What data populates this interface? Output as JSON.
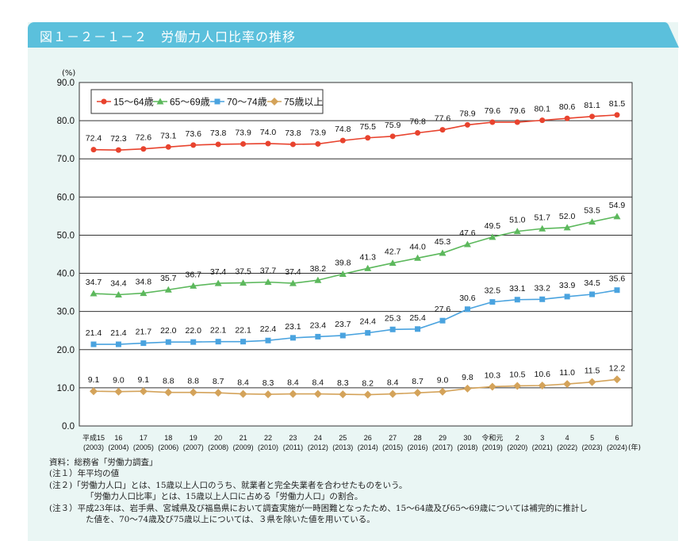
{
  "title": "図１－２－１－２　労働力人口比率の推移",
  "chart_data": {
    "type": "line",
    "title": "図１－２－１－２　労働力人口比率の推移",
    "ylabel": "(%)",
    "xunit": "(年)",
    "ylim": [
      0,
      90
    ],
    "yticks": [
      "0.0",
      "10.0",
      "20.0",
      "30.0",
      "40.0",
      "50.0",
      "60.0",
      "70.0",
      "80.0",
      "90.0"
    ],
    "grid": true,
    "legend_position": "top-left",
    "categories": [
      {
        "era": "平成15",
        "year": "(2003)"
      },
      {
        "era": "16",
        "year": "(2004)"
      },
      {
        "era": "17",
        "year": "(2005)"
      },
      {
        "era": "18",
        "year": "(2006)"
      },
      {
        "era": "19",
        "year": "(2007)"
      },
      {
        "era": "20",
        "year": "(2008)"
      },
      {
        "era": "21",
        "year": "(2009)"
      },
      {
        "era": "22",
        "year": "(2010)"
      },
      {
        "era": "23",
        "year": "(2011)"
      },
      {
        "era": "24",
        "year": "(2012)"
      },
      {
        "era": "25",
        "year": "(2013)"
      },
      {
        "era": "26",
        "year": "(2014)"
      },
      {
        "era": "27",
        "year": "(2015)"
      },
      {
        "era": "28",
        "year": "(2016)"
      },
      {
        "era": "29",
        "year": "(2017)"
      },
      {
        "era": "30",
        "year": "(2018)"
      },
      {
        "era": "令和元",
        "year": "(2019)"
      },
      {
        "era": "2",
        "year": "(2020)"
      },
      {
        "era": "3",
        "year": "(2021)"
      },
      {
        "era": "4",
        "year": "(2022)"
      },
      {
        "era": "5",
        "year": "(2023)"
      },
      {
        "era": "6",
        "year": "(2024)"
      }
    ],
    "series": [
      {
        "name": "15～64歳",
        "color": "#e8432e",
        "marker": "circle",
        "values": [
          72.4,
          72.3,
          72.6,
          73.1,
          73.6,
          73.8,
          73.9,
          74.0,
          73.8,
          73.9,
          74.8,
          75.5,
          75.9,
          76.8,
          77.6,
          78.9,
          79.6,
          79.6,
          80.1,
          80.6,
          81.1,
          81.5
        ]
      },
      {
        "name": "65～69歳",
        "color": "#5cb85c",
        "marker": "triangle",
        "values": [
          34.7,
          34.4,
          34.8,
          35.7,
          36.7,
          37.4,
          37.5,
          37.7,
          37.4,
          38.2,
          39.8,
          41.3,
          42.7,
          44.0,
          45.3,
          47.6,
          49.5,
          51.0,
          51.7,
          52.0,
          53.5,
          54.9
        ]
      },
      {
        "name": "70～74歳",
        "color": "#4aa3df",
        "marker": "square",
        "values": [
          21.4,
          21.4,
          21.7,
          22.0,
          22.0,
          22.1,
          22.1,
          22.4,
          23.1,
          23.4,
          23.7,
          24.4,
          25.3,
          25.4,
          27.6,
          30.6,
          32.5,
          33.1,
          33.2,
          33.9,
          34.5,
          35.6
        ]
      },
      {
        "name": "75歳以上",
        "color": "#d4a35a",
        "marker": "diamond",
        "values": [
          9.1,
          9.0,
          9.1,
          8.8,
          8.8,
          8.7,
          8.4,
          8.3,
          8.4,
          8.4,
          8.3,
          8.2,
          8.4,
          8.7,
          9.0,
          9.8,
          10.3,
          10.5,
          10.6,
          11.0,
          11.5,
          12.2
        ]
      }
    ]
  },
  "notes": {
    "source": "資料：総務省「労働力調査」",
    "note1": "(注１）年平均の値",
    "note2a": "(注２)「労働力人口」とは、15歳以上人口のうち、就業者と完全失業者を合わせたものをいう。",
    "note2b": "「労働力人口比率」とは、15歳以上人口に占める「労働力人口」の割合。",
    "note3a": "(注３）平成23年は、岩手県、宮城県及び福島県において調査実施が一時困難となったため、15～64歳及び65～69歳については補完的に推計し",
    "note3b": "た値を、70～74歳及び75歳以上については、３県を除いた値を用いている。"
  }
}
